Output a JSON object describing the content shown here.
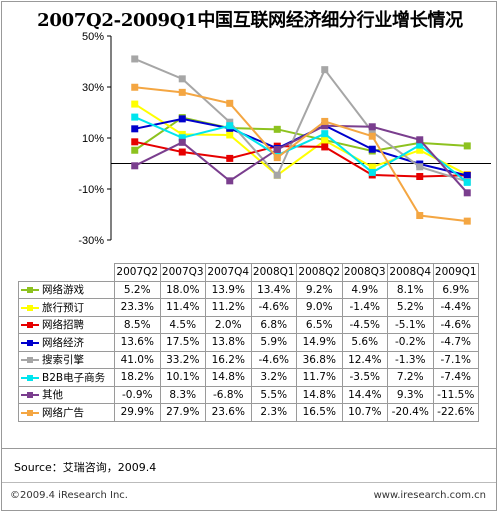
{
  "title": "2007Q2-2009Q1中国互联网经济细分行业增长情况",
  "source": "Source：艾瑞咨询，2009.4",
  "copyright": "©2009.4 iResearch Inc.",
  "website": "www.iresearch.com.cn",
  "chart_data": {
    "type": "line",
    "title": "2007Q2-2009Q1中国互联网经济细分行业增长情况",
    "categories": [
      "2007Q2",
      "2007Q3",
      "2007Q4",
      "2008Q1",
      "2008Q2",
      "2008Q3",
      "2008Q4",
      "2009Q1"
    ],
    "y_ticks": [
      "50%",
      "30%",
      "10%",
      "-10%",
      "-30%"
    ],
    "ylim": [
      -30,
      50
    ],
    "grid": false,
    "data_table": true,
    "series": [
      {
        "name": "网络游戏",
        "color": "#8DC21F",
        "values": [
          5.2,
          18.0,
          13.9,
          13.4,
          9.2,
          4.9,
          8.1,
          6.9
        ],
        "labels": [
          "5.2%",
          "18.0%",
          "13.9%",
          "13.4%",
          "9.2%",
          "4.9%",
          "8.1%",
          "6.9%"
        ]
      },
      {
        "name": "旅行预订",
        "color": "#FFFF00",
        "values": [
          23.3,
          11.4,
          11.2,
          -4.6,
          9.0,
          -1.4,
          5.2,
          -4.4
        ],
        "labels": [
          "23.3%",
          "11.4%",
          "11.2%",
          "-4.6%",
          "9.0%",
          "-1.4%",
          "5.2%",
          "-4.4%"
        ]
      },
      {
        "name": "网络招聘",
        "color": "#E60000",
        "values": [
          8.5,
          4.5,
          2.0,
          6.8,
          6.5,
          -4.5,
          -5.1,
          -4.6
        ],
        "labels": [
          "8.5%",
          "4.5%",
          "2.0%",
          "6.8%",
          "6.5%",
          "-4.5%",
          "-5.1%",
          "-4.6%"
        ]
      },
      {
        "name": "网络经济",
        "color": "#0000CC",
        "values": [
          13.6,
          17.5,
          13.8,
          5.9,
          14.9,
          5.6,
          -0.2,
          -4.7
        ],
        "labels": [
          "13.6%",
          "17.5%",
          "13.8%",
          "5.9%",
          "14.9%",
          "5.6%",
          "-0.2%",
          "-4.7%"
        ]
      },
      {
        "name": "搜索引擎",
        "color": "#A6A6A6",
        "values": [
          41.0,
          33.2,
          16.2,
          -4.6,
          36.8,
          12.4,
          -1.3,
          -7.1
        ],
        "labels": [
          "41.0%",
          "33.2%",
          "16.2%",
          "-4.6%",
          "36.8%",
          "12.4%",
          "-1.3%",
          "-7.1%"
        ]
      },
      {
        "name": "B2B电子商务",
        "color": "#00E5EE",
        "values": [
          18.2,
          10.1,
          14.8,
          3.2,
          11.7,
          -3.5,
          7.2,
          -7.4
        ],
        "labels": [
          "18.2%",
          "10.1%",
          "14.8%",
          "3.2%",
          "11.7%",
          "-3.5%",
          "7.2%",
          "-7.4%"
        ]
      },
      {
        "name": "其他",
        "color": "#7A3E8E",
        "values": [
          -0.9,
          8.3,
          -6.8,
          5.5,
          14.8,
          14.4,
          9.3,
          -11.5
        ],
        "labels": [
          "-0.9%",
          "8.3%",
          "-6.8%",
          "5.5%",
          "14.8%",
          "14.4%",
          "9.3%",
          "-11.5%"
        ]
      },
      {
        "name": "网络广告",
        "color": "#F4A642",
        "values": [
          29.9,
          27.9,
          23.6,
          2.3,
          16.5,
          10.7,
          -20.4,
          -22.6
        ],
        "labels": [
          "29.9%",
          "27.9%",
          "23.6%",
          "2.3%",
          "16.5%",
          "10.7%",
          "-20.4%",
          "-22.6%"
        ]
      }
    ]
  }
}
